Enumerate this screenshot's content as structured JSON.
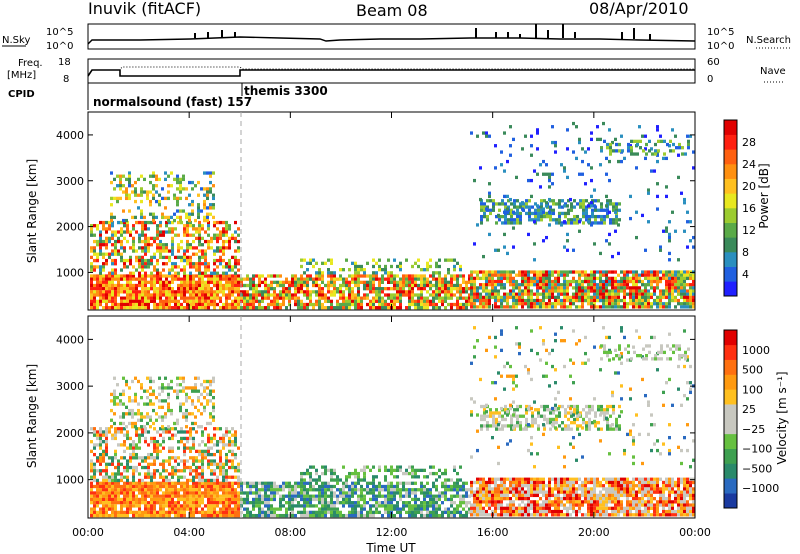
{
  "header": {
    "station": "Inuvik (fitACF)",
    "beam": "Beam 08",
    "date": "08/Apr/2010"
  },
  "top_panels": {
    "nsky_label": "N.Sky",
    "nsky_ticks": [
      "10^5",
      "10^0"
    ],
    "nsearch_label": "N.Search",
    "nsearch_ticks": [
      "10^5",
      "10^0"
    ],
    "freq_label_1": "Freq.",
    "freq_label_2": "[MHz]",
    "freq_ticks": [
      "18",
      "8"
    ],
    "nave_label": "Nave",
    "nave_ticks": [
      "60",
      "0"
    ],
    "cpid_label": "CPID",
    "cpid_modes": [
      "normalsound (fast) 157",
      "themis 3300"
    ]
  },
  "chart_data": [
    {
      "type": "heatmap",
      "panel": "power",
      "ylabel": "Slant Range [km]",
      "xlabel": "Time UT",
      "x_ticks": [
        "00:00",
        "04:00",
        "08:00",
        "12:00",
        "16:00",
        "20:00",
        "00:00"
      ],
      "y_ticks": [
        "1000",
        "2000",
        "3000",
        "4000"
      ],
      "ylim": [
        180,
        4500
      ],
      "colorbar_label": "Power [dB]",
      "colorbar_ticks": [
        "4",
        "8",
        "12",
        "16",
        "20",
        "24",
        "28"
      ],
      "colorbar_colors": [
        "#2020ff",
        "#2060e0",
        "#2a8fbf",
        "#3a8a5a",
        "#5aaa48",
        "#9ccc30",
        "#e8e820",
        "#ffc020",
        "#ff9010",
        "#ff6010",
        "#ff2010",
        "#e00000"
      ]
    },
    {
      "type": "heatmap",
      "panel": "velocity",
      "ylabel": "Slant Range [km]",
      "xlabel": "Time UT",
      "x_ticks": [
        "00:00",
        "04:00",
        "08:00",
        "12:00",
        "16:00",
        "20:00",
        "00:00"
      ],
      "y_ticks": [
        "1000",
        "2000",
        "3000",
        "4000"
      ],
      "ylim": [
        180,
        4500
      ],
      "colorbar_label": "Velocity [m s⁻¹]",
      "colorbar_ticks": [
        "1000",
        "500",
        "100",
        "25",
        "−25",
        "−100",
        "−500",
        "−1000"
      ],
      "colorbar_colors": [
        "#1a3aa0",
        "#2a6ac0",
        "#2a8a6a",
        "#3ea050",
        "#66c040",
        "#c8c8c0",
        "#c8c8c0",
        "#ffc020",
        "#ff9a10",
        "#ff7010",
        "#ff3010",
        "#e00000"
      ]
    }
  ],
  "xaxis_title": "Time UT"
}
